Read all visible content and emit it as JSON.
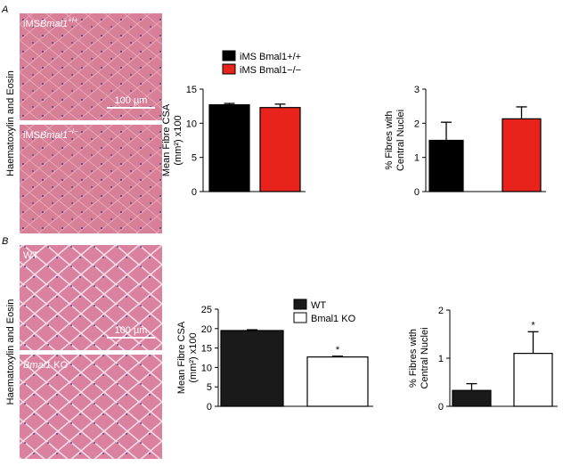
{
  "panels": [
    {
      "letter": "A",
      "side_label": "Haematoxylin and Eosin",
      "images": [
        {
          "prefix": "iMS",
          "gene": "Bmal1",
          "genotype": "+/+",
          "scale_bar": "100 µm"
        },
        {
          "prefix": "iMS",
          "gene": "Bmal1",
          "genotype": "−/−"
        }
      ]
    },
    {
      "letter": "B",
      "side_label": "Haematoxylin and Eosin",
      "images": [
        {
          "prefix": "WT",
          "scale_bar": "100 µm"
        },
        {
          "gene": "Bmal1",
          "suffix": " KO"
        }
      ]
    }
  ],
  "chart_data": [
    {
      "type": "bar",
      "y_label": [
        "Mean Fibre CSA",
        "(mm²) x100"
      ],
      "ylim": [
        0,
        15
      ],
      "yticks": [
        0,
        5,
        10,
        15
      ],
      "legend": true,
      "series": [
        {
          "name": "iMS Bmal1+/+",
          "color": "#000000",
          "values": [
            12.7
          ],
          "errors": [
            0.2
          ]
        },
        {
          "name": "iMS Bmal1−/−",
          "color": "#e8231c",
          "values": [
            12.3
          ],
          "errors": [
            0.5
          ]
        }
      ]
    },
    {
      "type": "bar",
      "y_label": [
        "% Fibres with",
        "Central Nuclei"
      ],
      "ylim": [
        0,
        3
      ],
      "yticks": [
        0,
        1,
        2,
        3
      ],
      "legend": false,
      "series": [
        {
          "color": "#000000",
          "values": [
            1.5
          ],
          "errors": [
            0.53
          ]
        },
        {
          "color": "#e8231c",
          "values": [
            2.13
          ],
          "errors": [
            0.35
          ]
        }
      ]
    },
    {
      "type": "bar",
      "y_label": [
        "Mean Fibre CSA",
        "(mm²) x100"
      ],
      "ylim": [
        0,
        25
      ],
      "yticks": [
        0,
        5,
        10,
        15,
        20,
        25
      ],
      "legend": true,
      "series": [
        {
          "name": "WT",
          "color": "#1a1a1a",
          "values": [
            19.5
          ],
          "errors": [
            0.2
          ]
        },
        {
          "name": "Bmal1 KO",
          "color": "#ffffff",
          "values": [
            12.7
          ],
          "errors": [
            0.2
          ],
          "annotation": "*"
        }
      ]
    },
    {
      "type": "bar",
      "y_label": [
        "% Fibres with",
        "Central Nuclei"
      ],
      "ylim": [
        0,
        2
      ],
      "yticks": [
        0,
        1,
        2
      ],
      "legend": false,
      "series": [
        {
          "color": "#1a1a1a",
          "values": [
            0.33
          ],
          "errors": [
            0.14
          ]
        },
        {
          "color": "#ffffff",
          "values": [
            1.1
          ],
          "errors": [
            0.45
          ],
          "annotation": "*"
        }
      ]
    }
  ]
}
